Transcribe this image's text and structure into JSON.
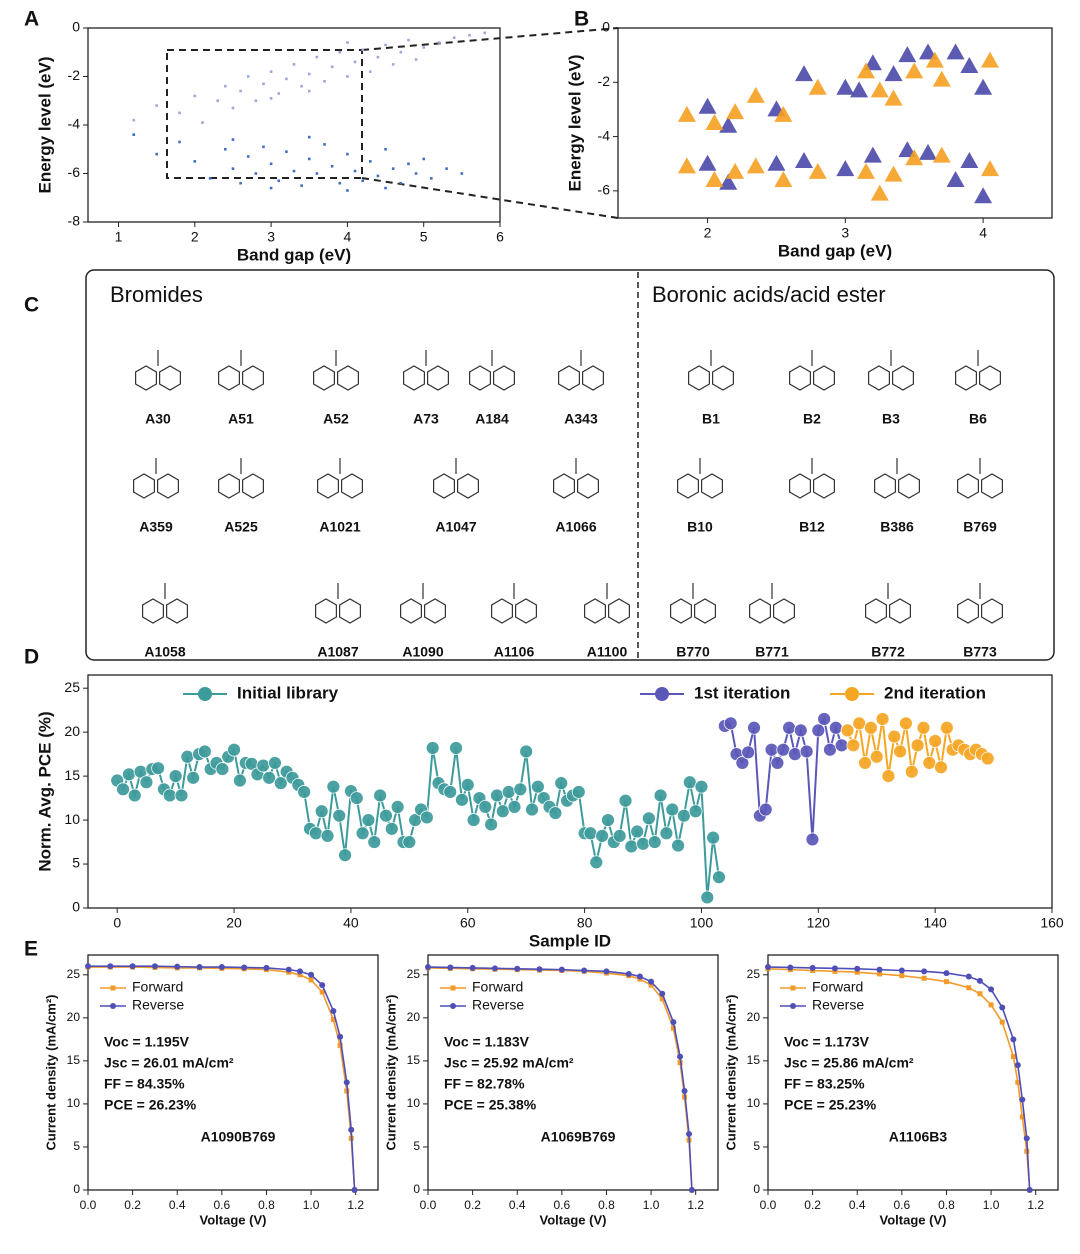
{
  "chart_data": [
    {
      "type": "scatter",
      "label": "A",
      "marker": "dot",
      "xlabel": "Band gap (eV)",
      "ylabel": "Energy level (eV)",
      "xlim": [
        0.6,
        6
      ],
      "ylim": [
        -8,
        0
      ],
      "xticks": [
        1,
        2,
        3,
        4,
        5,
        6
      ],
      "yticks": [
        0,
        -2,
        -4,
        -6,
        -8
      ],
      "series": [
        {
          "color": "#9ba8dc",
          "x": [
            1.2,
            1.5,
            1.8,
            2.0,
            2.1,
            2.3,
            2.4,
            2.5,
            2.6,
            2.7,
            2.8,
            2.9,
            3.0,
            3.1,
            3.2,
            3.3,
            3.4,
            3.5,
            3.6,
            3.7,
            3.8,
            3.9,
            4.0,
            4.1,
            4.2,
            4.3,
            4.4,
            4.5,
            4.6,
            4.7,
            4.8,
            4.9,
            5.0,
            5.2,
            5.4,
            5.6,
            5.8,
            3.0,
            3.5,
            4.0
          ],
          "values": [
            -3.8,
            -3.2,
            -3.5,
            -2.8,
            -3.9,
            -3.0,
            -2.4,
            -3.3,
            -2.6,
            -2.0,
            -3.0,
            -2.3,
            -1.8,
            -2.7,
            -2.1,
            -1.5,
            -2.4,
            -1.9,
            -1.2,
            -2.2,
            -1.6,
            -1.0,
            -2.0,
            -1.4,
            -0.9,
            -1.8,
            -1.2,
            -0.7,
            -1.5,
            -1.0,
            -0.5,
            -1.3,
            -0.8,
            -0.6,
            -0.4,
            -0.3,
            -0.2,
            -2.9,
            -2.6,
            -0.6
          ]
        },
        {
          "color": "#3f6fc0",
          "x": [
            1.2,
            1.5,
            1.8,
            2.0,
            2.2,
            2.4,
            2.5,
            2.6,
            2.7,
            2.8,
            2.9,
            3.0,
            3.1,
            3.2,
            3.3,
            3.4,
            3.5,
            3.6,
            3.7,
            3.8,
            3.9,
            4.0,
            4.1,
            4.2,
            4.3,
            4.4,
            4.5,
            4.6,
            4.7,
            4.8,
            4.9,
            5.0,
            5.1,
            5.3,
            5.5,
            3.0,
            3.5,
            4.0,
            2.5,
            4.5
          ],
          "values": [
            -4.4,
            -5.2,
            -4.7,
            -5.5,
            -6.2,
            -5.0,
            -5.8,
            -6.4,
            -5.3,
            -6.0,
            -4.9,
            -5.6,
            -6.3,
            -5.1,
            -5.9,
            -6.5,
            -5.4,
            -6.0,
            -4.8,
            -5.7,
            -6.4,
            -5.2,
            -5.9,
            -6.3,
            -5.5,
            -6.1,
            -5.0,
            -5.8,
            -6.4,
            -5.6,
            -6.0,
            -5.4,
            -6.2,
            -5.8,
            -6.0,
            -6.6,
            -4.5,
            -6.7,
            -4.6,
            -6.6
          ]
        }
      ]
    },
    {
      "type": "scatter",
      "label": "B",
      "marker": "triangle",
      "xlabel": "Band gap (eV)",
      "ylabel": "Energy level (eV)",
      "xlim": [
        1.35,
        4.5
      ],
      "ylim": [
        -7,
        0
      ],
      "xticks": [
        2,
        3,
        4
      ],
      "yticks": [
        0,
        -2,
        -4,
        -6
      ],
      "series": [
        {
          "color": "#4a48a8",
          "x": [
            2.0,
            2.15,
            2.5,
            2.7,
            3.0,
            3.1,
            3.2,
            3.35,
            3.45,
            3.6,
            3.8,
            3.9,
            4.0,
            2.0,
            2.15,
            2.5,
            2.7,
            3.0,
            3.2,
            3.45,
            3.6,
            3.8,
            3.9,
            4.0
          ],
          "values": [
            -2.9,
            -3.6,
            -3.0,
            -1.7,
            -2.2,
            -2.3,
            -1.3,
            -1.7,
            -1.0,
            -0.9,
            -0.9,
            -1.4,
            -2.2,
            -5.0,
            -5.7,
            -5.0,
            -4.9,
            -5.2,
            -4.7,
            -4.5,
            -4.6,
            -5.6,
            -4.9,
            -6.2
          ]
        },
        {
          "color": "#f5a020",
          "x": [
            1.85,
            2.05,
            2.2,
            2.35,
            2.55,
            2.8,
            3.15,
            3.25,
            3.35,
            3.5,
            3.65,
            3.7,
            4.05,
            1.85,
            2.05,
            2.2,
            2.35,
            2.55,
            2.8,
            3.15,
            3.25,
            3.35,
            3.5,
            3.7,
            4.05
          ],
          "values": [
            -3.2,
            -3.5,
            -3.1,
            -2.5,
            -3.2,
            -2.2,
            -1.6,
            -2.3,
            -2.6,
            -1.6,
            -1.2,
            -1.9,
            -1.2,
            -5.1,
            -5.6,
            -5.3,
            -5.1,
            -5.6,
            -5.3,
            -5.3,
            -6.1,
            -5.4,
            -4.8,
            -4.7,
            -5.2
          ]
        }
      ]
    },
    {
      "type": "line",
      "label": "D",
      "marker": "circle",
      "xlabel": "Sample ID",
      "ylabel": "Norm. Avg. PCE (%)",
      "xlim": [
        -5,
        160
      ],
      "ylim": [
        0,
        26.5
      ],
      "xticks": [
        0,
        20,
        40,
        60,
        80,
        100,
        120,
        140,
        160
      ],
      "yticks": [
        0,
        5,
        10,
        15,
        20,
        25
      ],
      "series": [
        {
          "name": "Initial library",
          "color": "#3d9b9b",
          "x": [
            0,
            1,
            2,
            3,
            4,
            5,
            6,
            7,
            8,
            9,
            10,
            11,
            12,
            13,
            14,
            15,
            16,
            17,
            18,
            19,
            20,
            21,
            22,
            23,
            24,
            25,
            26,
            27,
            28,
            29,
            30,
            31,
            32,
            33,
            34,
            35,
            36,
            37,
            38,
            39,
            40,
            41,
            42,
            43,
            44,
            45,
            46,
            47,
            48,
            49,
            50,
            51,
            52,
            53,
            54,
            55,
            56,
            57,
            58,
            59,
            60,
            61,
            62,
            63,
            64,
            65,
            66,
            67,
            68,
            69,
            70,
            71,
            72,
            73,
            74,
            75,
            76,
            77,
            78,
            79,
            80,
            81,
            82,
            83,
            84,
            85,
            86,
            87,
            88,
            89,
            90,
            91,
            92,
            93,
            94,
            95,
            96,
            97,
            98,
            99,
            100,
            101,
            102,
            103
          ],
          "values": [
            14.5,
            13.5,
            15.2,
            12.8,
            15.5,
            14.3,
            15.8,
            15.9,
            13.5,
            12.8,
            15,
            12.8,
            17.2,
            14.8,
            17.5,
            17.8,
            15.8,
            16.5,
            15.8,
            17.2,
            18,
            14.5,
            16.5,
            16.4,
            15.2,
            16.2,
            14.8,
            16.5,
            14.2,
            15.5,
            14.8,
            14,
            13.2,
            9,
            8.5,
            11,
            8.2,
            13.8,
            10.5,
            6,
            13.3,
            12.5,
            8.5,
            10,
            7.5,
            12.8,
            10.5,
            9,
            11.5,
            7.5,
            7.5,
            10,
            11.2,
            10.3,
            18.2,
            14.2,
            13.5,
            13.2,
            18.2,
            12.3,
            14,
            10,
            12.5,
            11.5,
            9.5,
            12.8,
            11,
            13.2,
            11.5,
            13.5,
            17.8,
            11.2,
            13.8,
            12.5,
            11.5,
            10.8,
            14.2,
            12.2,
            12.8,
            13.2,
            8.5,
            8.5,
            5.2,
            8.2,
            10,
            7.5,
            8.2,
            12.2,
            7,
            8.7,
            7.3,
            10.2,
            7.5,
            12.8,
            8.5,
            11.2,
            7.1,
            10.5,
            14.3,
            11,
            13.8,
            1.2,
            8,
            3.5
          ]
        },
        {
          "name": "1st iteration",
          "color": "#5b57b8",
          "x": [
            104,
            105,
            106,
            107,
            108,
            109,
            110,
            111,
            112,
            113,
            114,
            115,
            116,
            117,
            118,
            119,
            120,
            121,
            122,
            123,
            124
          ],
          "values": [
            20.7,
            21,
            17.5,
            16.5,
            17.7,
            20.5,
            10.5,
            11.2,
            18,
            16.5,
            18,
            20.5,
            17.5,
            20.2,
            17.8,
            7.8,
            20.2,
            21.5,
            18,
            20.5,
            18.5
          ]
        },
        {
          "name": "2nd iteration",
          "color": "#f5a623",
          "x": [
            125,
            126,
            127,
            128,
            129,
            130,
            131,
            132,
            133,
            134,
            135,
            136,
            137,
            138,
            139,
            140,
            141,
            142,
            143,
            144,
            145,
            146,
            147,
            148,
            149
          ],
          "values": [
            20.2,
            18.5,
            21,
            16.5,
            20.5,
            17.2,
            21.5,
            15,
            19.5,
            17.8,
            21,
            15.5,
            18.5,
            20.5,
            16.5,
            19,
            16,
            20.5,
            18,
            18.5,
            18,
            17.5,
            18,
            17.5,
            17
          ]
        }
      ]
    },
    {
      "type": "line",
      "label": "E",
      "marker": "jv",
      "xlabel": "Voltage (V)",
      "ylabel": "Current density (mA/cm²)",
      "xlim": [
        0,
        1.3
      ],
      "ylim": [
        0,
        27.3
      ],
      "xticks": [
        {
          "value": 0,
          "label": "0.0"
        },
        0.2,
        0.4,
        0.6,
        0.8,
        {
          "value": 1,
          "label": "1.0"
        },
        1.2
      ],
      "yticks": [
        0,
        5,
        10,
        15,
        20,
        25
      ],
      "annotations": [
        "Voc = 1.195V",
        "Jsc = 26.01 mA/cm²",
        "FF = 84.35%",
        "PCE = 26.23%"
      ],
      "molecule": "A1090B769",
      "x": [
        0,
        0.1,
        0.2,
        0.3,
        0.4,
        0.5,
        0.6,
        0.7,
        0.8,
        0.9,
        0.95,
        1.0,
        1.05,
        1.1,
        1.13,
        1.16,
        1.18,
        1.195
      ],
      "series": [
        {
          "name": "Forward",
          "color": "#f39a2a",
          "values": [
            25.9,
            25.9,
            25.9,
            25.85,
            25.8,
            25.8,
            25.75,
            25.7,
            25.6,
            25.3,
            25.0,
            24.4,
            23.0,
            19.8,
            16.8,
            11.5,
            6,
            0
          ]
        },
        {
          "name": "Reverse",
          "color": "#4f4fb8",
          "values": [
            26.0,
            26.0,
            26.0,
            26.0,
            25.95,
            25.9,
            25.9,
            25.85,
            25.8,
            25.6,
            25.4,
            25.0,
            23.8,
            20.8,
            17.8,
            12.5,
            7,
            0
          ]
        }
      ]
    },
    {
      "type": "line",
      "marker": "jv",
      "xlabel": "Voltage (V)",
      "ylabel": "Current density (mA/cm²)",
      "xlim": [
        0,
        1.3
      ],
      "ylim": [
        0,
        27.3
      ],
      "xticks": [
        {
          "value": 0,
          "label": "0.0"
        },
        0.2,
        0.4,
        0.6,
        0.8,
        {
          "value": 1,
          "label": "1.0"
        },
        1.2
      ],
      "yticks": [
        0,
        5,
        10,
        15,
        20,
        25
      ],
      "annotations": [
        "Voc = 1.183V",
        "Jsc = 25.92 mA/cm²",
        "FF = 82.78%",
        "PCE = 25.38%"
      ],
      "molecule": "A1069B769",
      "x": [
        0,
        0.1,
        0.2,
        0.3,
        0.4,
        0.5,
        0.6,
        0.7,
        0.8,
        0.9,
        0.95,
        1.0,
        1.05,
        1.1,
        1.13,
        1.15,
        1.17,
        1.183
      ],
      "series": [
        {
          "name": "Forward",
          "color": "#f39a2a",
          "values": [
            25.8,
            25.75,
            25.7,
            25.65,
            25.6,
            25.55,
            25.5,
            25.4,
            25.2,
            24.9,
            24.5,
            23.8,
            22.2,
            18.8,
            14.8,
            10.8,
            5.8,
            0
          ]
        },
        {
          "name": "Reverse",
          "color": "#4f4fb8",
          "values": [
            25.9,
            25.85,
            25.8,
            25.75,
            25.7,
            25.65,
            25.6,
            25.5,
            25.4,
            25.1,
            24.8,
            24.2,
            22.8,
            19.5,
            15.5,
            11.5,
            6.5,
            0
          ]
        }
      ]
    },
    {
      "type": "line",
      "marker": "jv",
      "xlabel": "Voltage (V)",
      "ylabel": "Current density (mA/cm²)",
      "xlim": [
        0,
        1.3
      ],
      "ylim": [
        0,
        27.3
      ],
      "xticks": [
        {
          "value": 0,
          "label": "0.0"
        },
        0.2,
        0.4,
        0.6,
        0.8,
        {
          "value": 1,
          "label": "1.0"
        },
        1.2
      ],
      "yticks": [
        0,
        5,
        10,
        15,
        20,
        25
      ],
      "annotations": [
        "Voc = 1.173V",
        "Jsc = 25.86 mA/cm²",
        "FF = 83.25%",
        "PCE = 25.23%"
      ],
      "molecule": "A1106B3",
      "x": [
        0,
        0.1,
        0.2,
        0.3,
        0.4,
        0.5,
        0.6,
        0.7,
        0.8,
        0.9,
        0.95,
        1.0,
        1.05,
        1.1,
        1.12,
        1.14,
        1.16,
        1.173
      ],
      "series": [
        {
          "name": "Forward",
          "color": "#f39a2a",
          "values": [
            25.7,
            25.6,
            25.5,
            25.4,
            25.3,
            25.1,
            24.9,
            24.6,
            24.2,
            23.5,
            22.8,
            21.5,
            19.5,
            15.5,
            12.5,
            8.5,
            4.5,
            0
          ]
        },
        {
          "name": "Reverse",
          "color": "#4f4fb8",
          "values": [
            25.9,
            25.85,
            25.8,
            25.75,
            25.7,
            25.6,
            25.5,
            25.4,
            25.2,
            24.8,
            24.3,
            23.3,
            21.2,
            17.5,
            14.5,
            10.5,
            6.0,
            0
          ]
        }
      ]
    }
  ],
  "structures": {
    "label": "C",
    "groups": [
      {
        "title": "Bromides",
        "rows": [
          [
            "A30",
            "A51",
            "A52",
            "A73",
            "A184",
            "A343"
          ],
          [
            "A359",
            "A525",
            "A1021",
            "A1047",
            "A1066"
          ],
          [
            "A1058",
            "A1087",
            "A1090",
            "A1106",
            "A1100"
          ]
        ]
      },
      {
        "title": "Boronic acids/acid ester",
        "rows": [
          [
            "B1",
            "B2",
            "B3",
            "B6"
          ],
          [
            "B10",
            "B12",
            "B386",
            "B769"
          ],
          [
            "B770",
            "B771",
            "B772",
            "B773"
          ]
        ]
      }
    ]
  }
}
